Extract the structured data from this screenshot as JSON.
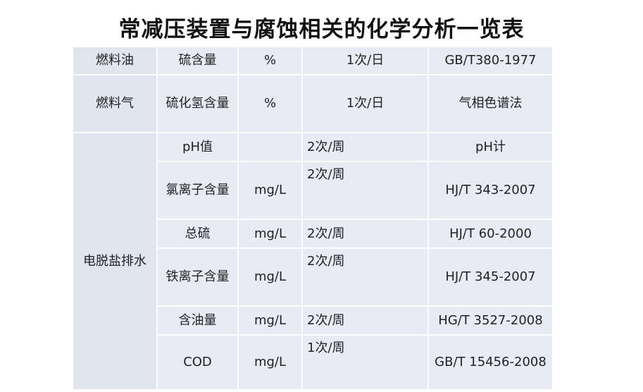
{
  "title": "常减压装置与腐蚀相关的化学分析一览表",
  "rows": [
    {
      "group": "燃料油",
      "item": "硫含量",
      "unit": "%",
      "freq": "1次/日",
      "method": "GB/T380-1977"
    },
    {
      "group": "燃料气",
      "item": "硫化氢含量",
      "unit": "%",
      "freq": "1次/日",
      "method": "气相色谱法"
    },
    {
      "group": "电脱盐排水",
      "item": "pH值",
      "unit": "",
      "freq": "2次/周",
      "method": "pH计"
    },
    {
      "group": "",
      "item": "氯离子含量",
      "unit": "mg/L",
      "freq": "2次/周",
      "method": "HJ/T 343-2007"
    },
    {
      "group": "",
      "item": "总硫",
      "unit": "mg/L",
      "freq": "2次/周",
      "method": "HJ/T 60-2000"
    },
    {
      "group": "",
      "item": "铁离子含量",
      "unit": "mg/L",
      "freq": "2次/周",
      "method": "HJ/T 345-2007"
    },
    {
      "group": "",
      "item": "含油量",
      "unit": "mg/L",
      "freq": "2次/周",
      "method": "HG/T 3527-2008"
    },
    {
      "group": "",
      "item": "COD",
      "unit": "mg/L",
      "freq": "1次/周",
      "method": "GB/T 15456-2008"
    }
  ]
}
